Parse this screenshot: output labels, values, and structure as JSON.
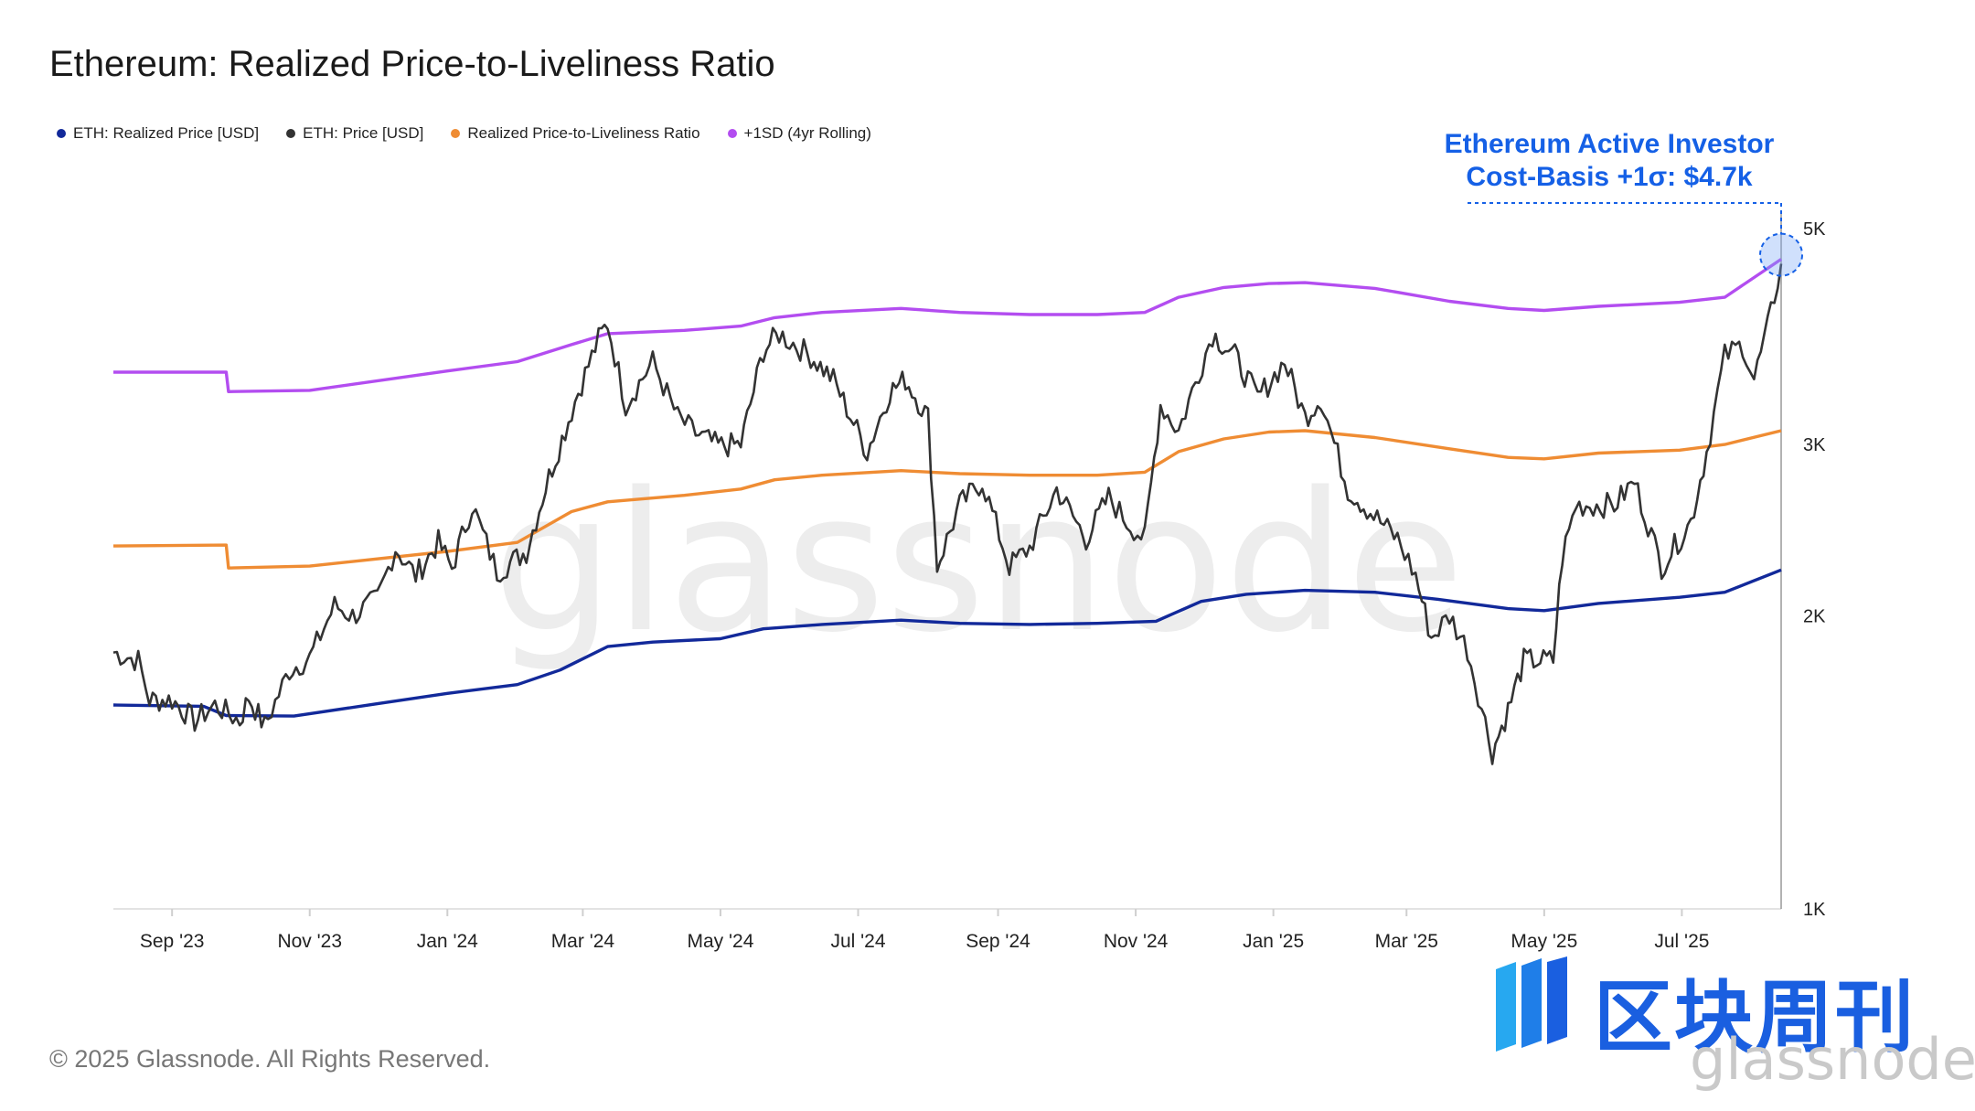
{
  "title": "Ethereum: Realized Price-to-Liveliness Ratio",
  "footer": "© 2025 Glassnode. All Rights Reserved.",
  "annotation": {
    "line1": "Ethereum Active Investor",
    "line2": "Cost-Basis +1σ: $4.7k"
  },
  "watermark": "glassnode",
  "logo": {
    "cn": "区块周刊",
    "en": "glassnode"
  },
  "colors": {
    "realized": "#12299a",
    "price": "#333333",
    "ratio": "#ef8c33",
    "sd": "#b34df0",
    "annotation": "#1560e6"
  },
  "chart_data": {
    "type": "line",
    "title": "Ethereum: Realized Price-to-Liveliness Ratio",
    "yscale": "log",
    "ylim": [
      1000,
      5000
    ],
    "y_ticks": [
      {
        "value": 5000,
        "label": "5K"
      },
      {
        "value": 3000,
        "label": "3K"
      },
      {
        "value": 2000,
        "label": "2K"
      },
      {
        "value": 1000,
        "label": "1K"
      }
    ],
    "x_range": [
      "2023-08-06",
      "2025-08-14"
    ],
    "x_ticks": [
      {
        "date": "2023-09-01",
        "label": "Sep '23"
      },
      {
        "date": "2023-11-01",
        "label": "Nov '23"
      },
      {
        "date": "2024-01-01",
        "label": "Jan '24"
      },
      {
        "date": "2024-03-01",
        "label": "Mar '24"
      },
      {
        "date": "2024-05-01",
        "label": "May '24"
      },
      {
        "date": "2024-07-01",
        "label": "Jul '24"
      },
      {
        "date": "2024-09-01",
        "label": "Sep '24"
      },
      {
        "date": "2024-11-01",
        "label": "Nov '24"
      },
      {
        "date": "2025-01-01",
        "label": "Jan '25"
      },
      {
        "date": "2025-03-01",
        "label": "Mar '25"
      },
      {
        "date": "2025-05-01",
        "label": "May '25"
      },
      {
        "date": "2025-07-01",
        "label": "Jul '25"
      }
    ],
    "legend_placement": "top-left",
    "grid": false,
    "series": [
      {
        "name": "ETH: Realized Price [USD]",
        "key": "realized",
        "points": [
          [
            "2023-08-06",
            1620
          ],
          [
            "2023-09-15",
            1615
          ],
          [
            "2023-09-25",
            1580
          ],
          [
            "2023-10-25",
            1578
          ],
          [
            "2023-12-01",
            1625
          ],
          [
            "2024-01-01",
            1665
          ],
          [
            "2024-02-01",
            1700
          ],
          [
            "2024-02-20",
            1760
          ],
          [
            "2024-03-12",
            1860
          ],
          [
            "2024-04-01",
            1880
          ],
          [
            "2024-05-01",
            1895
          ],
          [
            "2024-05-20",
            1940
          ],
          [
            "2024-06-15",
            1960
          ],
          [
            "2024-07-20",
            1980
          ],
          [
            "2024-08-15",
            1965
          ],
          [
            "2024-09-15",
            1960
          ],
          [
            "2024-10-15",
            1965
          ],
          [
            "2024-11-10",
            1975
          ],
          [
            "2024-11-30",
            2070
          ],
          [
            "2024-12-20",
            2105
          ],
          [
            "2025-01-15",
            2125
          ],
          [
            "2025-02-15",
            2115
          ],
          [
            "2025-03-15",
            2080
          ],
          [
            "2025-04-15",
            2035
          ],
          [
            "2025-05-01",
            2025
          ],
          [
            "2025-05-25",
            2060
          ],
          [
            "2025-06-30",
            2090
          ],
          [
            "2025-07-20",
            2115
          ],
          [
            "2025-08-14",
            2230
          ]
        ]
      },
      {
        "name": "ETH: Price [USD]",
        "key": "price",
        "points": [
          [
            "2023-08-06",
            1835
          ],
          [
            "2023-08-17",
            1800
          ],
          [
            "2023-08-22",
            1640
          ],
          [
            "2023-09-01",
            1640
          ],
          [
            "2023-09-11",
            1560
          ],
          [
            "2023-09-20",
            1620
          ],
          [
            "2023-10-01",
            1560
          ],
          [
            "2023-10-05",
            1650
          ],
          [
            "2023-10-12",
            1540
          ],
          [
            "2023-10-23",
            1760
          ],
          [
            "2023-11-01",
            1810
          ],
          [
            "2023-11-12",
            2050
          ],
          [
            "2023-11-20",
            2000
          ],
          [
            "2023-12-01",
            2080
          ],
          [
            "2023-12-09",
            2350
          ],
          [
            "2023-12-18",
            2200
          ],
          [
            "2023-12-28",
            2380
          ],
          [
            "2024-01-03",
            2240
          ],
          [
            "2024-01-12",
            2600
          ],
          [
            "2024-01-23",
            2220
          ],
          [
            "2024-02-05",
            2330
          ],
          [
            "2024-02-15",
            2780
          ],
          [
            "2024-02-28",
            3400
          ],
          [
            "2024-03-08",
            3850
          ],
          [
            "2024-03-12",
            4000
          ],
          [
            "2024-03-20",
            3300
          ],
          [
            "2024-04-01",
            3650
          ],
          [
            "2024-04-12",
            3200
          ],
          [
            "2024-04-20",
            3080
          ],
          [
            "2024-04-30",
            2990
          ],
          [
            "2024-05-10",
            3000
          ],
          [
            "2024-05-20",
            3750
          ],
          [
            "2024-05-27",
            3900
          ],
          [
            "2024-06-10",
            3700
          ],
          [
            "2024-06-20",
            3500
          ],
          [
            "2024-07-05",
            2950
          ],
          [
            "2024-07-15",
            3400
          ],
          [
            "2024-07-22",
            3500
          ],
          [
            "2024-08-01",
            3200
          ],
          [
            "2024-08-05",
            2250
          ],
          [
            "2024-08-15",
            2600
          ],
          [
            "2024-08-25",
            2750
          ],
          [
            "2024-09-06",
            2250
          ],
          [
            "2024-09-15",
            2350
          ],
          [
            "2024-09-27",
            2700
          ],
          [
            "2024-10-10",
            2400
          ],
          [
            "2024-10-20",
            2650
          ],
          [
            "2024-10-28",
            2500
          ],
          [
            "2024-11-05",
            2400
          ],
          [
            "2024-11-12",
            3300
          ],
          [
            "2024-11-20",
            3100
          ],
          [
            "2024-12-05",
            3900
          ],
          [
            "2024-12-15",
            3700
          ],
          [
            "2024-12-25",
            3350
          ],
          [
            "2025-01-06",
            3650
          ],
          [
            "2025-01-15",
            3200
          ],
          [
            "2025-01-22",
            3350
          ],
          [
            "2025-02-03",
            2700
          ],
          [
            "2025-02-10",
            2600
          ],
          [
            "2025-02-25",
            2400
          ],
          [
            "2025-03-05",
            2200
          ],
          [
            "2025-03-12",
            1900
          ],
          [
            "2025-03-20",
            2000
          ],
          [
            "2025-03-28",
            1850
          ],
          [
            "2025-04-08",
            1450
          ],
          [
            "2025-04-15",
            1600
          ],
          [
            "2025-04-22",
            1800
          ],
          [
            "2025-05-05",
            1800
          ],
          [
            "2025-05-09",
            2300
          ],
          [
            "2025-05-15",
            2600
          ],
          [
            "2025-06-01",
            2600
          ],
          [
            "2025-06-10",
            2750
          ],
          [
            "2025-06-22",
            2250
          ],
          [
            "2025-07-05",
            2500
          ],
          [
            "2025-07-12",
            2950
          ],
          [
            "2025-07-20",
            3700
          ],
          [
            "2025-07-28",
            3800
          ],
          [
            "2025-08-02",
            3500
          ],
          [
            "2025-08-08",
            3950
          ],
          [
            "2025-08-14",
            4600
          ]
        ]
      },
      {
        "name": "Realized Price-to-Liveliness Ratio",
        "key": "ratio",
        "points": [
          [
            "2023-08-06",
            2360
          ],
          [
            "2023-09-25",
            2365
          ],
          [
            "2023-09-26",
            2240
          ],
          [
            "2023-11-01",
            2250
          ],
          [
            "2024-01-01",
            2330
          ],
          [
            "2024-02-01",
            2380
          ],
          [
            "2024-02-25",
            2560
          ],
          [
            "2024-03-12",
            2620
          ],
          [
            "2024-04-15",
            2660
          ],
          [
            "2024-05-10",
            2700
          ],
          [
            "2024-05-25",
            2760
          ],
          [
            "2024-06-15",
            2790
          ],
          [
            "2024-07-20",
            2820
          ],
          [
            "2024-08-15",
            2800
          ],
          [
            "2024-09-15",
            2790
          ],
          [
            "2024-10-15",
            2790
          ],
          [
            "2024-11-05",
            2810
          ],
          [
            "2024-11-20",
            2950
          ],
          [
            "2024-12-10",
            3040
          ],
          [
            "2024-12-30",
            3090
          ],
          [
            "2025-01-15",
            3100
          ],
          [
            "2025-02-15",
            3050
          ],
          [
            "2025-03-20",
            2970
          ],
          [
            "2025-04-15",
            2910
          ],
          [
            "2025-05-01",
            2900
          ],
          [
            "2025-05-25",
            2940
          ],
          [
            "2025-06-30",
            2960
          ],
          [
            "2025-07-20",
            3000
          ],
          [
            "2025-08-14",
            3100
          ]
        ]
      },
      {
        "name": "+1SD (4yr Rolling)",
        "key": "sd",
        "points": [
          [
            "2023-08-06",
            3560
          ],
          [
            "2023-09-25",
            3560
          ],
          [
            "2023-09-26",
            3400
          ],
          [
            "2023-11-01",
            3410
          ],
          [
            "2024-01-01",
            3570
          ],
          [
            "2024-02-01",
            3650
          ],
          [
            "2024-02-25",
            3800
          ],
          [
            "2024-03-12",
            3900
          ],
          [
            "2024-04-15",
            3930
          ],
          [
            "2024-05-10",
            3970
          ],
          [
            "2024-05-25",
            4050
          ],
          [
            "2024-06-15",
            4100
          ],
          [
            "2024-07-20",
            4140
          ],
          [
            "2024-08-15",
            4100
          ],
          [
            "2024-09-15",
            4080
          ],
          [
            "2024-10-15",
            4080
          ],
          [
            "2024-11-05",
            4100
          ],
          [
            "2024-11-20",
            4250
          ],
          [
            "2024-12-10",
            4350
          ],
          [
            "2024-12-30",
            4390
          ],
          [
            "2025-01-15",
            4400
          ],
          [
            "2025-02-15",
            4340
          ],
          [
            "2025-03-20",
            4210
          ],
          [
            "2025-04-15",
            4140
          ],
          [
            "2025-05-01",
            4120
          ],
          [
            "2025-05-25",
            4160
          ],
          [
            "2025-06-30",
            4200
          ],
          [
            "2025-07-20",
            4250
          ],
          [
            "2025-08-14",
            4650
          ]
        ]
      }
    ],
    "annotation_point": {
      "date": "2025-08-14",
      "value": 4700,
      "label": "Ethereum Active Investor Cost-Basis +1σ: $4.7k"
    }
  }
}
